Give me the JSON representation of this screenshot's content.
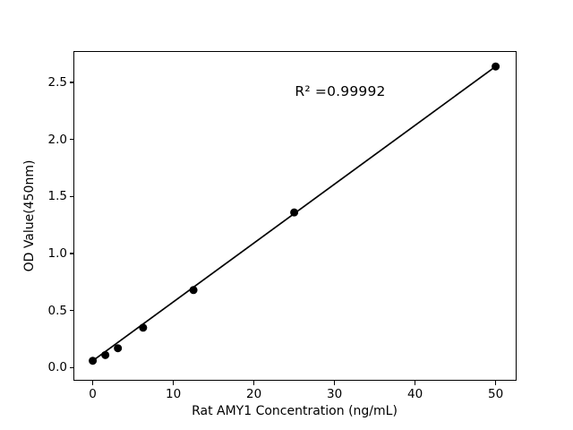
{
  "chart_data": {
    "type": "scatter",
    "title": "",
    "xlabel": "Rat AMY1 Concentration (ng/mL)",
    "ylabel": "OD Value(450nm)",
    "annotation": "R² =0.99992",
    "r_squared": 0.99992,
    "x": [
      0,
      1.56,
      3.12,
      6.25,
      12.5,
      25,
      50
    ],
    "y": [
      0.06,
      0.11,
      0.17,
      0.35,
      0.68,
      1.36,
      2.64
    ],
    "trend_line": {
      "x1": 0,
      "y1": 0.06,
      "x2": 50,
      "y2": 2.64
    },
    "x_ticks": [
      {
        "v": 0,
        "label": "0"
      },
      {
        "v": 10,
        "label": "10"
      },
      {
        "v": 20,
        "label": "20"
      },
      {
        "v": 30,
        "label": "30"
      },
      {
        "v": 40,
        "label": "40"
      },
      {
        "v": 50,
        "label": "50"
      }
    ],
    "y_ticks": [
      {
        "v": 0.0,
        "label": "0.0"
      },
      {
        "v": 0.5,
        "label": "0.5"
      },
      {
        "v": 1.0,
        "label": "1.0"
      },
      {
        "v": 1.5,
        "label": "1.5"
      },
      {
        "v": 2.0,
        "label": "2.0"
      },
      {
        "v": 2.5,
        "label": "2.5"
      }
    ],
    "xlim": [
      -2.4,
      52.6
    ],
    "ylim": [
      -0.115,
      2.775
    ],
    "grid": false,
    "legend": false,
    "marker_color": "#000000",
    "line_color": "#000000",
    "text_color": "#000000",
    "background": "#ffffff"
  }
}
